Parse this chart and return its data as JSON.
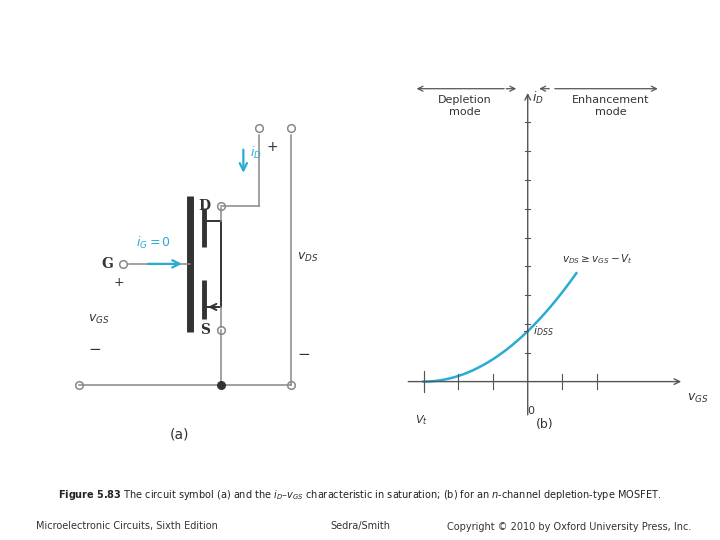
{
  "fig_width": 7.2,
  "fig_height": 5.4,
  "bg_color": "#ffffff",
  "cyan_color": "#29ABD4",
  "dark_color": "#333333",
  "wire_color": "#888888",
  "mosfet_color": "#333333",
  "axis_color": "#555555",
  "bottom_left": "Microelectronic Circuits, Sixth Edition",
  "bottom_center": "Sedra/Smith",
  "bottom_right": "Copyright © 2010 by Oxford University Press, Inc.",
  "label_a": "(a)",
  "label_b": "(b)",
  "Vt": -3.0,
  "IDSS": 0.35,
  "vgs_end": 1.4,
  "x_min": -4.0,
  "x_max": 4.5,
  "y_min": -0.5,
  "y_max": 2.2
}
